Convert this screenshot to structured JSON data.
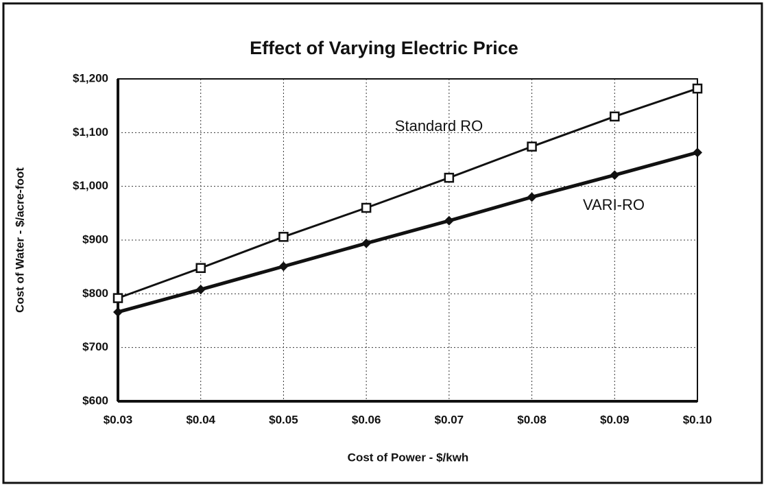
{
  "chart_data": {
    "type": "line",
    "title": "Effect of Varying Electric Price",
    "x_label": "Cost of Power - $/kwh",
    "y_label": "Cost of Water - $/acre-foot",
    "x": [
      0.03,
      0.04,
      0.05,
      0.06,
      0.07,
      0.08,
      0.09,
      0.1
    ],
    "series": [
      {
        "name": "Standard RO",
        "color": "#111111",
        "marker": "square",
        "values": [
          792,
          848,
          906,
          960,
          1016,
          1074,
          1130,
          1182
        ]
      },
      {
        "name": "VARI-RO",
        "color": "#111111",
        "marker": "diamond",
        "values": [
          766,
          808,
          851,
          894,
          936,
          980,
          1021,
          1063
        ]
      }
    ],
    "xlim": [
      0.03,
      0.1
    ],
    "xticks": [
      {
        "value": 0.03,
        "label": "$0.03"
      },
      {
        "value": 0.04,
        "label": "$0.04"
      },
      {
        "value": 0.05,
        "label": "$0.05"
      },
      {
        "value": 0.06,
        "label": "$0.06"
      },
      {
        "value": 0.07,
        "label": "$0.07"
      },
      {
        "value": 0.08,
        "label": "$0.08"
      },
      {
        "value": 0.09,
        "label": "$0.09"
      },
      {
        "value": 0.1,
        "label": "$0.10"
      }
    ],
    "ylim": [
      600,
      1200
    ],
    "yticks": [
      {
        "value": 600,
        "label": "$600"
      },
      {
        "value": 700,
        "label": "$700"
      },
      {
        "value": 800,
        "label": "$800"
      },
      {
        "value": 900,
        "label": "$900"
      },
      {
        "value": 1000,
        "label": "$1,000"
      },
      {
        "value": 1100,
        "label": "$1,100"
      },
      {
        "value": 1200,
        "label": "$1,200"
      }
    ],
    "grid": true
  }
}
